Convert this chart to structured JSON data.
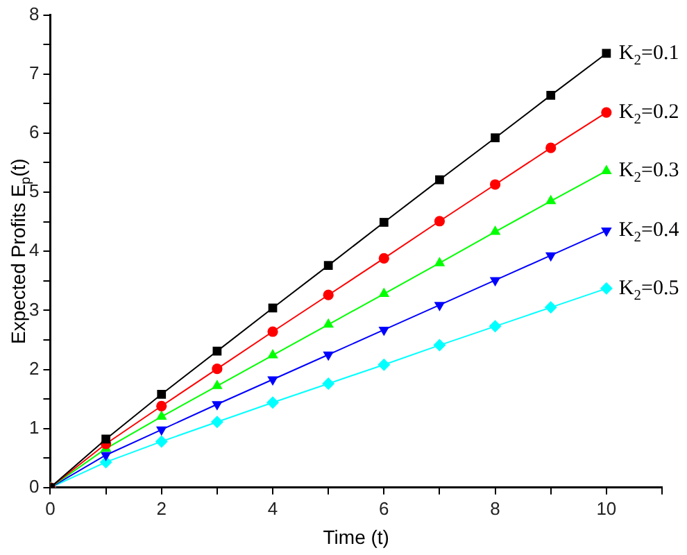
{
  "chart_data": {
    "type": "line",
    "xlabel": "Time (t)",
    "ylabel": "Expected Profits E$_{p}$(t)",
    "x": [
      0,
      1,
      2,
      3,
      4,
      5,
      6,
      7,
      8,
      9,
      10
    ],
    "xlim": [
      0,
      11
    ],
    "xticks": [
      0,
      {
        "value": 1,
        "label": null
      },
      2,
      {
        "value": 3,
        "label": null
      },
      4,
      {
        "value": 5,
        "label": null
      },
      6,
      {
        "value": 7,
        "label": null
      },
      8,
      {
        "value": 9,
        "label": null
      },
      10,
      {
        "value": 11,
        "label": null
      }
    ],
    "ylim": [
      0,
      8
    ],
    "yticks": [
      0,
      {
        "value": 0.5,
        "label": null
      },
      1,
      {
        "value": 1.5,
        "label": null
      },
      2,
      {
        "value": 2.5,
        "label": null
      },
      3,
      {
        "value": 3.5,
        "label": null
      },
      4,
      {
        "value": 4.5,
        "label": null
      },
      5,
      {
        "value": 5.5,
        "label": null
      },
      6,
      {
        "value": 6.5,
        "label": null
      },
      7,
      {
        "value": 7.5,
        "label": null
      },
      8
    ],
    "grid": false,
    "legend": false,
    "line_style": "solid",
    "series": [
      {
        "name": "K$_{2}$=0.1",
        "color": "#000000",
        "marker": "square",
        "values": [
          0,
          0.82,
          1.58,
          2.31,
          3.04,
          3.76,
          4.49,
          5.21,
          5.92,
          6.64,
          7.35
        ]
      },
      {
        "name": "K$_{2}$=0.2",
        "color": "#ff0000",
        "marker": "circle",
        "values": [
          0,
          0.74,
          1.38,
          2.01,
          2.64,
          3.26,
          3.88,
          4.51,
          5.13,
          5.75,
          6.35
        ]
      },
      {
        "name": "K$_{2}$=0.3",
        "color": "#00ff00",
        "marker": "triangle",
        "values": [
          0,
          0.66,
          1.2,
          1.72,
          2.24,
          2.76,
          3.28,
          3.8,
          4.33,
          4.85,
          5.36
        ]
      },
      {
        "name": "K$_{2}$=0.4",
        "color": "#0000ff",
        "marker": "triangle_down",
        "values": [
          0,
          0.55,
          0.98,
          1.41,
          1.83,
          2.25,
          2.67,
          3.09,
          3.51,
          3.93,
          4.35
        ]
      },
      {
        "name": "K$_{2}$=0.5",
        "color": "#00ffff",
        "marker": "diamond",
        "values": [
          0,
          0.43,
          0.78,
          1.11,
          1.44,
          1.76,
          2.08,
          2.41,
          2.73,
          3.05,
          3.37
        ]
      }
    ]
  }
}
